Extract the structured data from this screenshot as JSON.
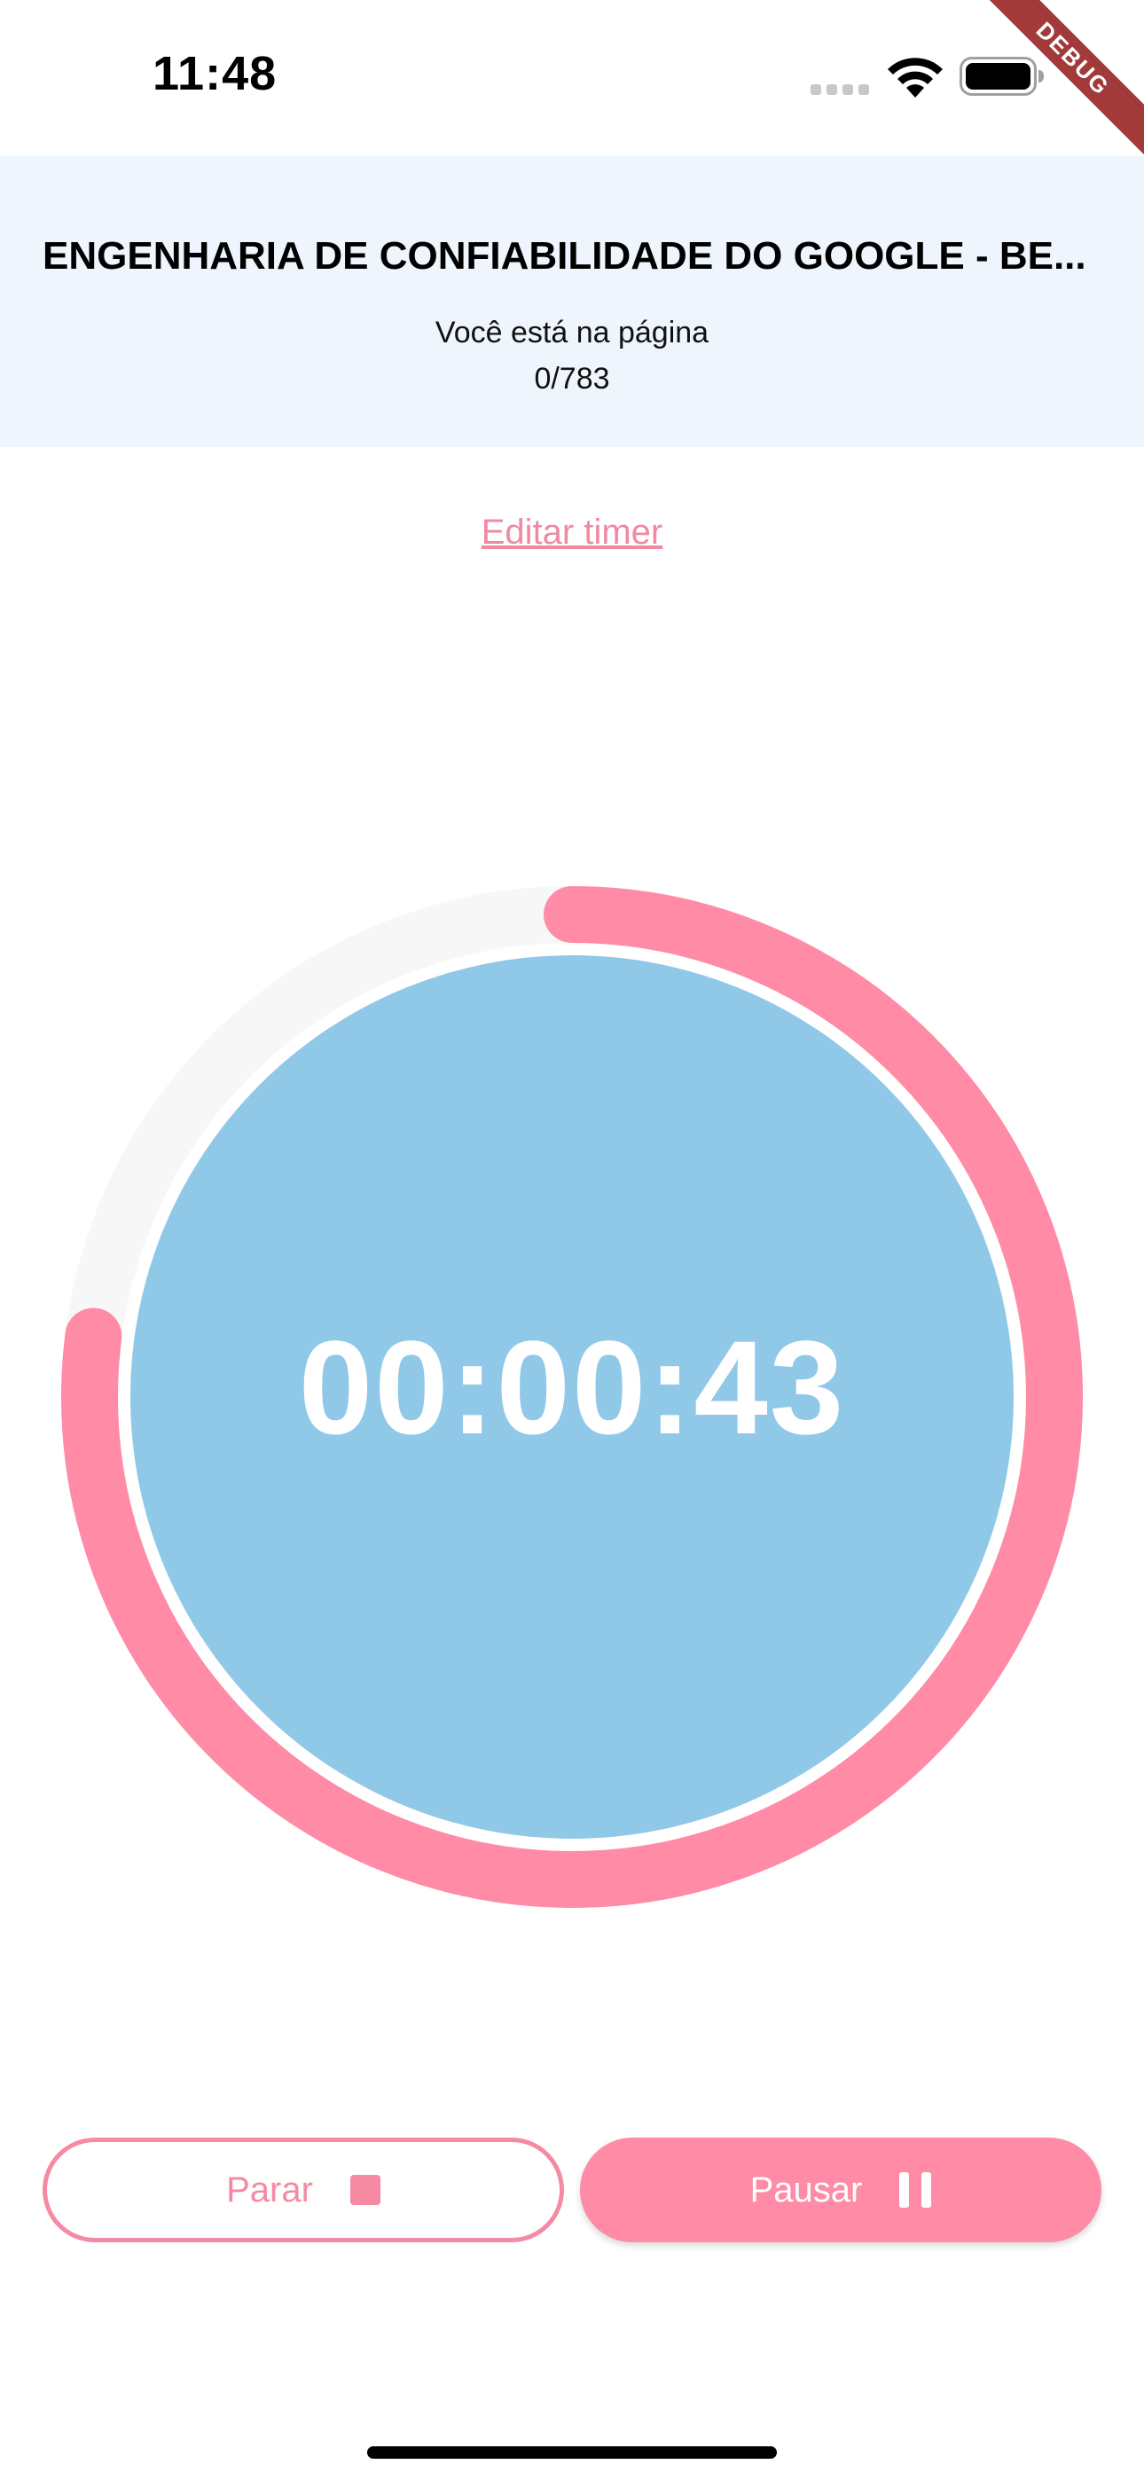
{
  "status_bar": {
    "time": "11:48",
    "icons": [
      "signal-icon",
      "wifi-icon",
      "battery-icon"
    ]
  },
  "debug_banner": "DEBUG",
  "header": {
    "title": "ENGENHARIA DE CONFIABILIDADE DO GOOGLE - BE...",
    "page_label": "Você está na página",
    "page_counter": "0/783"
  },
  "edit_timer_label": "Editar timer",
  "timer": {
    "display": "00:00:43",
    "progress_fraction": 0.77
  },
  "buttons": {
    "stop_label": "Parar",
    "pause_label": "Pausar"
  },
  "colors": {
    "accent_pink": "#ff8ba6",
    "timer_fill_blue": "#90c8e8",
    "header_bg": "#eef5fc",
    "track_gray": "#f7f7f7"
  }
}
